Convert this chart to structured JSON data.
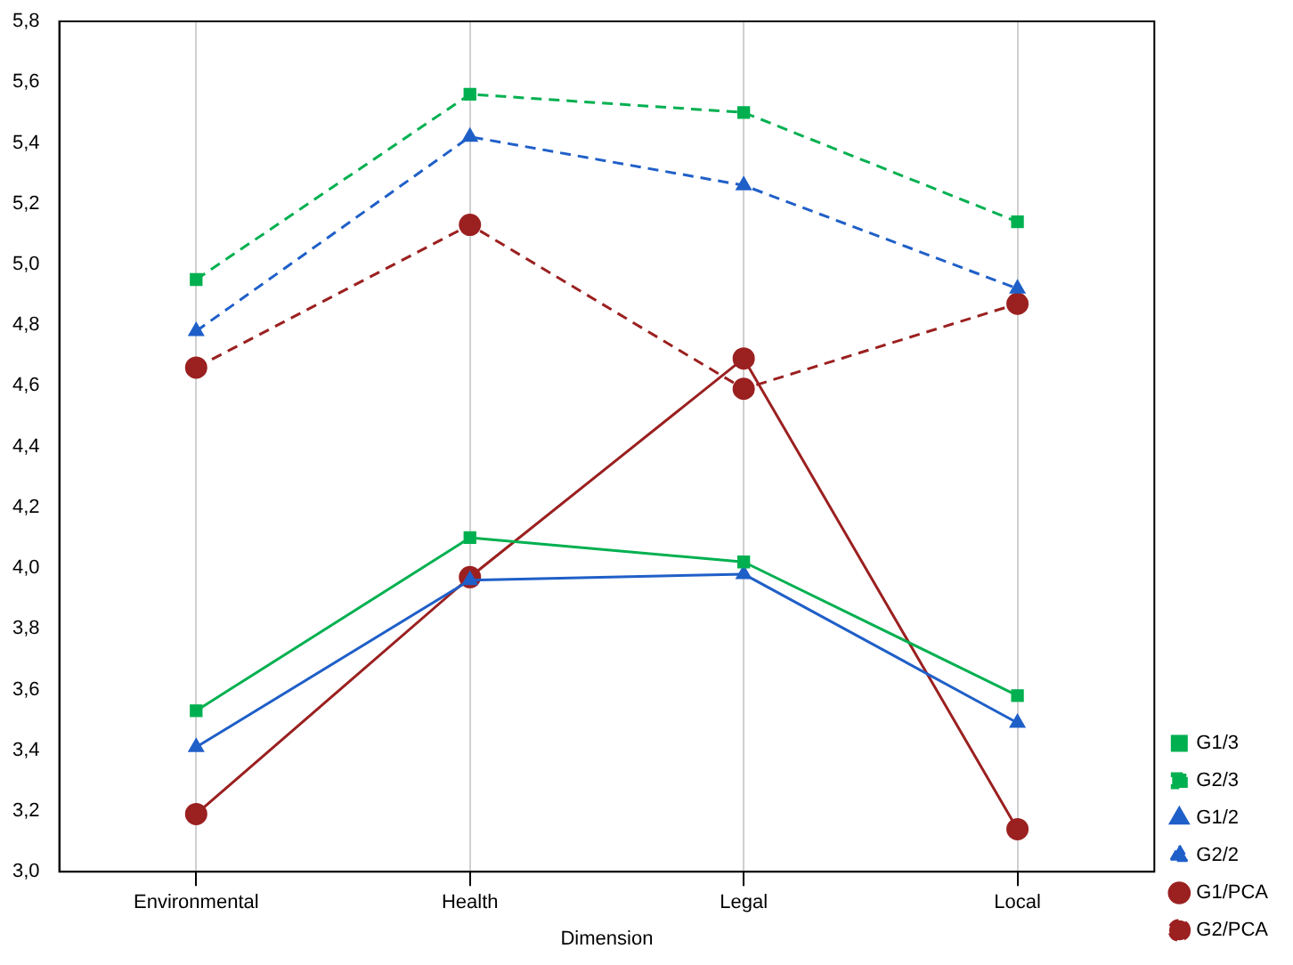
{
  "chart_data": {
    "type": "line",
    "xlabel": "Dimension",
    "categories": [
      "Environmental",
      "Health",
      "Legal",
      "Local"
    ],
    "ylim": [
      3.0,
      5.8
    ],
    "yticks": [
      {
        "value": 3.0,
        "label": "3,0"
      },
      {
        "value": 3.2,
        "label": "3,2"
      },
      {
        "value": 3.4,
        "label": "3,4"
      },
      {
        "value": 3.6,
        "label": "3,6"
      },
      {
        "value": 3.8,
        "label": "3,8"
      },
      {
        "value": 4.0,
        "label": "4,0"
      },
      {
        "value": 4.2,
        "label": "4,2"
      },
      {
        "value": 4.4,
        "label": "4,4"
      },
      {
        "value": 4.6,
        "label": "4,6"
      },
      {
        "value": 4.8,
        "label": "4,8"
      },
      {
        "value": 5.0,
        "label": "5,0"
      },
      {
        "value": 5.2,
        "label": "5,2"
      },
      {
        "value": 5.4,
        "label": "5,4"
      },
      {
        "value": 5.6,
        "label": "5,6"
      },
      {
        "value": 5.8,
        "label": "5,8"
      }
    ],
    "grid": "x",
    "legend": "bottom right",
    "series": [
      {
        "name": "G1/3",
        "color": "#00b050",
        "marker": "square",
        "line_style": "solid",
        "values": [
          3.53,
          4.1,
          4.02,
          3.58
        ]
      },
      {
        "name": "G2/3",
        "color": "#00b050",
        "marker": "square",
        "line_style": "dashed",
        "values": [
          4.95,
          5.56,
          5.5,
          5.14
        ]
      },
      {
        "name": "G1/2",
        "color": "#1f5fc8",
        "marker": "triangle",
        "line_style": "solid",
        "values": [
          3.41,
          3.96,
          3.98,
          3.49
        ]
      },
      {
        "name": "G2/2",
        "color": "#1f5fc8",
        "marker": "triangle",
        "line_style": "dashed",
        "values": [
          4.78,
          5.42,
          5.26,
          4.92
        ]
      },
      {
        "name": "G1/PCA",
        "color": "#9b2020",
        "marker": "circle",
        "line_style": "solid",
        "values": [
          3.19,
          3.97,
          4.69,
          3.14
        ]
      },
      {
        "name": "G2/PCA",
        "color": "#9b2020",
        "marker": "circle",
        "line_style": "dashed",
        "values": [
          4.66,
          5.13,
          4.59,
          4.87
        ]
      }
    ]
  }
}
